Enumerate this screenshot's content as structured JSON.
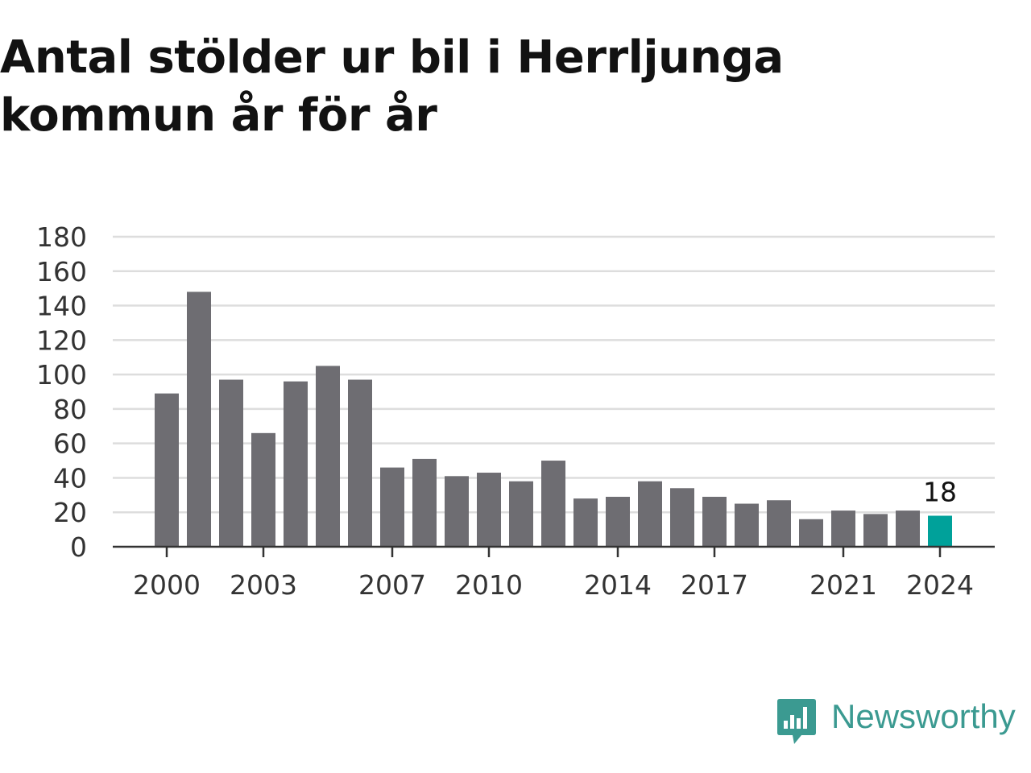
{
  "title": "Antal stölder ur bil i Herrljunga kommun år för år",
  "brand": {
    "name": "Newsworthy",
    "icon": "newsworthy-logo-icon",
    "color": "#3b9a91"
  },
  "colors": {
    "bar": "#6e6d72",
    "highlight": "#00a19a",
    "grid": "#dddddd",
    "axis": "#333333"
  },
  "chart_data": {
    "type": "bar",
    "title": "Antal stölder ur bil i Herrljunga kommun år för år",
    "xlabel": "",
    "ylabel": "",
    "categories": [
      2000,
      2001,
      2002,
      2003,
      2004,
      2005,
      2006,
      2007,
      2008,
      2009,
      2010,
      2011,
      2012,
      2013,
      2014,
      2015,
      2016,
      2017,
      2018,
      2019,
      2020,
      2021,
      2022,
      2023,
      2024
    ],
    "values": [
      89,
      148,
      97,
      66,
      96,
      105,
      97,
      46,
      51,
      41,
      43,
      38,
      50,
      28,
      29,
      38,
      34,
      29,
      25,
      27,
      16,
      21,
      19,
      21,
      18
    ],
    "ylim": [
      0,
      180
    ],
    "yticks": [
      0,
      20,
      40,
      60,
      80,
      100,
      120,
      140,
      160,
      180
    ],
    "xticks": [
      2000,
      2003,
      2007,
      2010,
      2014,
      2017,
      2021,
      2024
    ],
    "highlight": {
      "category": 2024,
      "label": "18"
    },
    "grid": true,
    "legend": "none"
  }
}
